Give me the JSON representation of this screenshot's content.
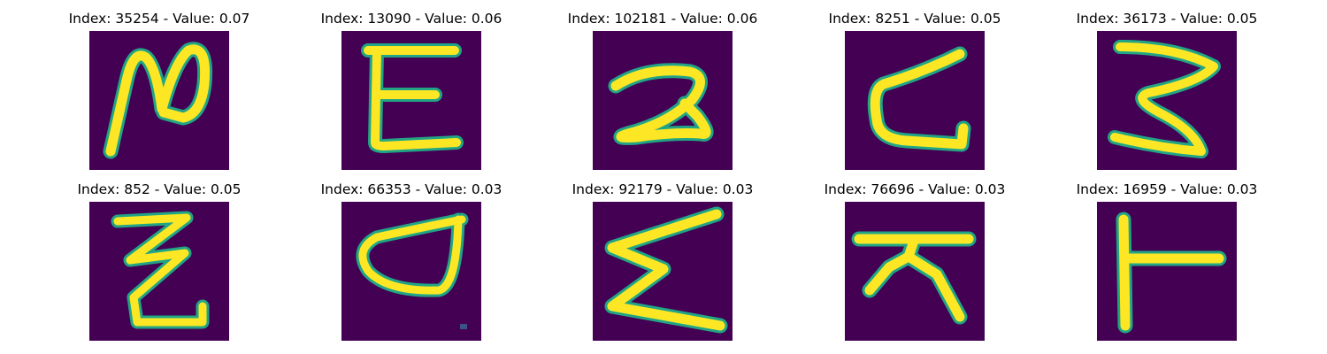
{
  "panels": [
    {
      "title": "Index: 35254 - Value: 0.07",
      "glyph": "glyph-35254"
    },
    {
      "title": "Index: 13090 - Value: 0.06",
      "glyph": "glyph-13090"
    },
    {
      "title": "Index: 102181 - Value: 0.06",
      "glyph": "glyph-102181"
    },
    {
      "title": "Index: 8251 - Value: 0.05",
      "glyph": "glyph-8251"
    },
    {
      "title": "Index: 36173 - Value: 0.05",
      "glyph": "glyph-36173"
    },
    {
      "title": "Index: 852 - Value: 0.05",
      "glyph": "glyph-852"
    },
    {
      "title": "Index: 66353 - Value: 0.03",
      "glyph": "glyph-66353"
    },
    {
      "title": "Index: 92179 - Value: 0.03",
      "glyph": "glyph-92179"
    },
    {
      "title": "Index: 76696 - Value: 0.03",
      "glyph": "glyph-76696"
    },
    {
      "title": "Index: 16959 - Value: 0.03",
      "glyph": "glyph-16959"
    }
  ],
  "colors": {
    "background": "#440154",
    "stroke": "#fde725",
    "edge": "#21a585"
  }
}
